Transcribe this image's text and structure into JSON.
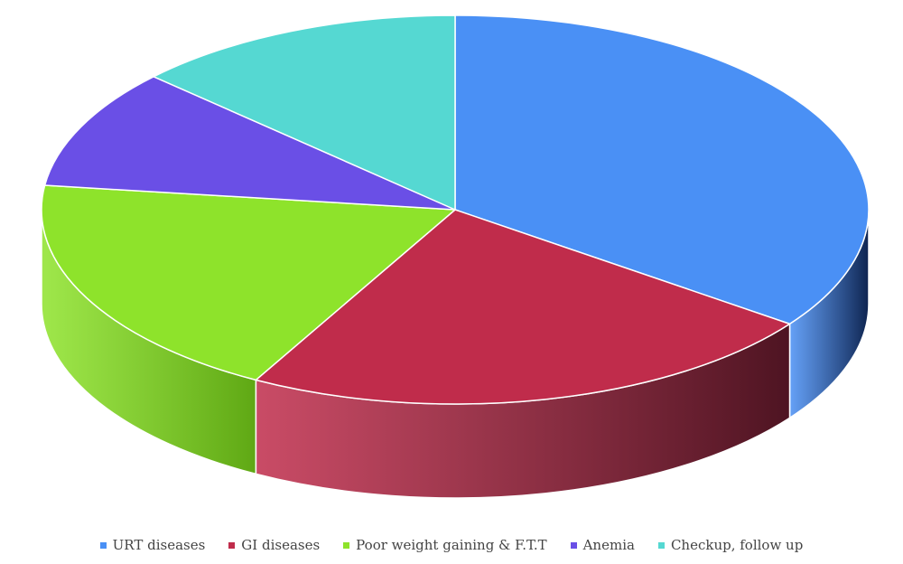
{
  "chart_data": {
    "type": "pie",
    "title": "",
    "categories": [
      "URT diseases",
      "GI diseases",
      "Poor weight gaining & F.T.T",
      "Anemia",
      "Checkup, follow up"
    ],
    "values": [
      35,
      23,
      19,
      10,
      13
    ],
    "colors": [
      "#4a90f5",
      "#c02c4b",
      "#8ee32b",
      "#6a4fe6",
      "#55d8d2"
    ],
    "side_colors": [
      "#0e2450",
      "#4e1422",
      "#5fa814",
      "#3a2a90",
      "#2a8a86"
    ],
    "legend_position": "bottom",
    "style": "3d"
  }
}
